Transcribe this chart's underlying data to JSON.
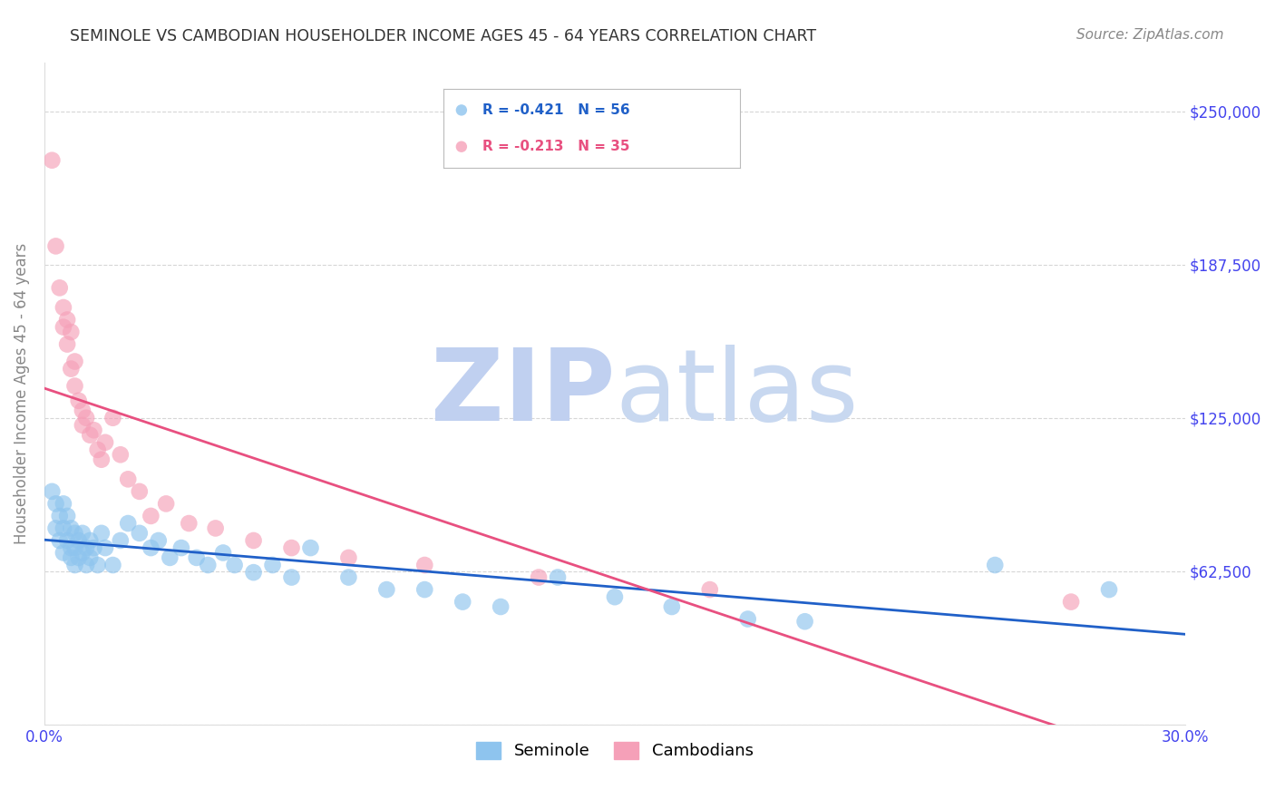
{
  "title": "SEMINOLE VS CAMBODIAN HOUSEHOLDER INCOME AGES 45 - 64 YEARS CORRELATION CHART",
  "source": "Source: ZipAtlas.com",
  "ylabel": "Householder Income Ages 45 - 64 years",
  "xmin": 0.0,
  "xmax": 0.3,
  "ymin": 0,
  "ymax": 270000,
  "yticks": [
    0,
    62500,
    125000,
    187500,
    250000
  ],
  "ytick_labels_right": [
    "",
    "$62,500",
    "$125,000",
    "$187,500",
    "$250,000"
  ],
  "xticks": [
    0.0,
    0.05,
    0.1,
    0.15,
    0.2,
    0.25,
    0.3
  ],
  "xtick_labels": [
    "0.0%",
    "",
    "",
    "",
    "",
    "",
    "30.0%"
  ],
  "seminole_R": -0.421,
  "seminole_N": 56,
  "cambodian_R": -0.213,
  "cambodian_N": 35,
  "seminole_color": "#8EC4EE",
  "cambodian_color": "#F5A0B8",
  "seminole_line_color": "#2060C8",
  "cambodian_line_color": "#E85080",
  "background_color": "#FFFFFF",
  "grid_color": "#CCCCCC",
  "watermark_zip_color": "#C0D0F0",
  "watermark_atlas_color": "#C8D8F0",
  "axis_label_color": "#4444EE",
  "title_color": "#333333",
  "source_color": "#888888",
  "ylabel_color": "#888888",
  "seminole_x": [
    0.002,
    0.003,
    0.003,
    0.004,
    0.004,
    0.005,
    0.005,
    0.005,
    0.006,
    0.006,
    0.007,
    0.007,
    0.007,
    0.008,
    0.008,
    0.008,
    0.009,
    0.009,
    0.01,
    0.01,
    0.011,
    0.011,
    0.012,
    0.012,
    0.013,
    0.014,
    0.015,
    0.016,
    0.018,
    0.02,
    0.022,
    0.025,
    0.028,
    0.03,
    0.033,
    0.036,
    0.04,
    0.043,
    0.047,
    0.05,
    0.055,
    0.06,
    0.065,
    0.07,
    0.08,
    0.09,
    0.1,
    0.11,
    0.12,
    0.135,
    0.15,
    0.165,
    0.185,
    0.2,
    0.25,
    0.28
  ],
  "seminole_y": [
    95000,
    80000,
    90000,
    85000,
    75000,
    90000,
    80000,
    70000,
    85000,
    75000,
    80000,
    72000,
    68000,
    78000,
    72000,
    65000,
    75000,
    68000,
    78000,
    70000,
    72000,
    65000,
    75000,
    68000,
    72000,
    65000,
    78000,
    72000,
    65000,
    75000,
    82000,
    78000,
    72000,
    75000,
    68000,
    72000,
    68000,
    65000,
    70000,
    65000,
    62000,
    65000,
    60000,
    72000,
    60000,
    55000,
    55000,
    50000,
    48000,
    60000,
    52000,
    48000,
    43000,
    42000,
    65000,
    55000
  ],
  "cambodian_x": [
    0.002,
    0.003,
    0.004,
    0.005,
    0.005,
    0.006,
    0.006,
    0.007,
    0.007,
    0.008,
    0.008,
    0.009,
    0.01,
    0.01,
    0.011,
    0.012,
    0.013,
    0.014,
    0.015,
    0.016,
    0.018,
    0.02,
    0.022,
    0.025,
    0.028,
    0.032,
    0.038,
    0.045,
    0.055,
    0.065,
    0.08,
    0.1,
    0.13,
    0.175,
    0.27
  ],
  "cambodian_y": [
    230000,
    195000,
    178000,
    170000,
    162000,
    165000,
    155000,
    160000,
    145000,
    148000,
    138000,
    132000,
    128000,
    122000,
    125000,
    118000,
    120000,
    112000,
    108000,
    115000,
    125000,
    110000,
    100000,
    95000,
    85000,
    90000,
    82000,
    80000,
    75000,
    72000,
    68000,
    65000,
    60000,
    55000,
    50000
  ]
}
